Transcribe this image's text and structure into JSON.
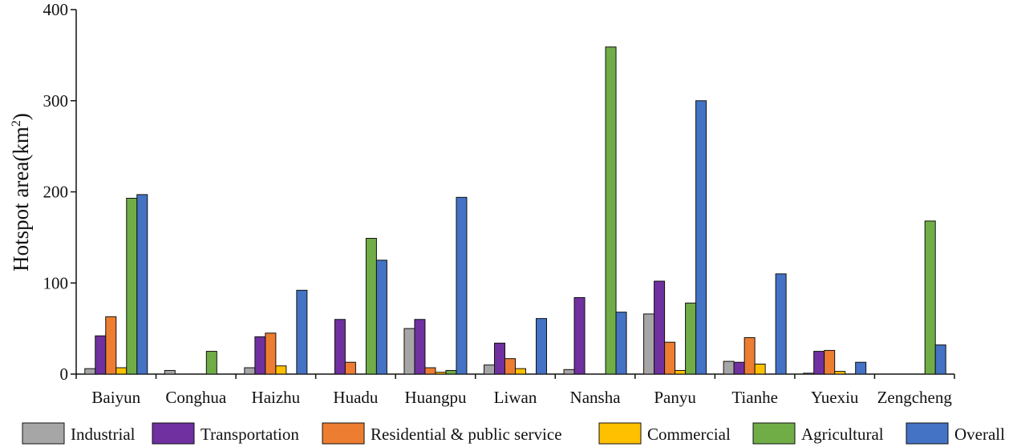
{
  "chart_data": {
    "type": "bar",
    "title": "",
    "xlabel": "",
    "ylabel": "Hotspot area(km",
    "ylabel_superscript": "2",
    "ylabel_close": ")",
    "ylim": [
      0,
      400
    ],
    "yticks": [
      0,
      100,
      200,
      300,
      400
    ],
    "grid": false,
    "legend_position": "bottom",
    "categories": [
      "Baiyun",
      "Conghua",
      "Haizhu",
      "Huadu",
      "Huangpu",
      "Liwan",
      "Nansha",
      "Panyu",
      "Tianhe",
      "Yuexiu",
      "Zengcheng"
    ],
    "series": [
      {
        "name": "Industrial",
        "color": "#a6a6a6",
        "values": [
          6,
          4,
          7,
          0,
          50,
          10,
          5,
          66,
          14,
          1,
          0
        ]
      },
      {
        "name": "Transportation",
        "color": "#7030a0",
        "values": [
          42,
          0,
          41,
          60,
          60,
          34,
          84,
          102,
          13,
          25,
          0
        ]
      },
      {
        "name": "Residential & public service",
        "color": "#ed7d31",
        "values": [
          63,
          0,
          45,
          13,
          7,
          17,
          0,
          35,
          40,
          26,
          0
        ]
      },
      {
        "name": "Commercial",
        "color": "#ffc000",
        "values": [
          7,
          0,
          9,
          0,
          2,
          6,
          0,
          4,
          11,
          3,
          0
        ]
      },
      {
        "name": "Agricultural",
        "color": "#70ad47",
        "values": [
          193,
          25,
          0,
          149,
          4,
          0,
          359,
          78,
          0,
          0,
          168
        ]
      },
      {
        "name": "Overall",
        "color": "#4472c4",
        "values": [
          197,
          0,
          92,
          125,
          194,
          61,
          68,
          300,
          110,
          13,
          32
        ]
      }
    ]
  }
}
